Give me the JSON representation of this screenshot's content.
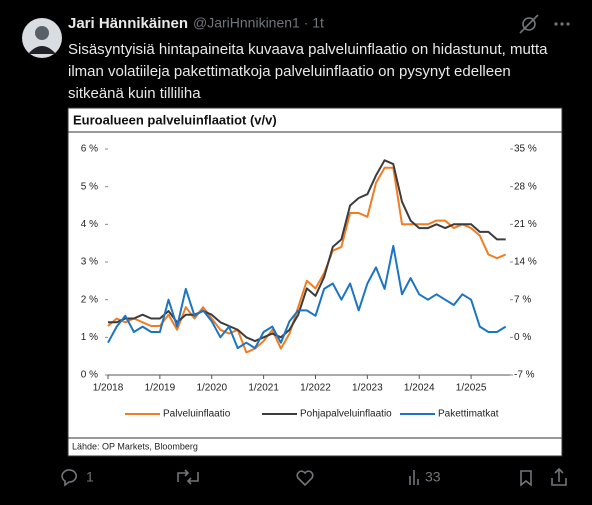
{
  "tweet": {
    "name": "Jari Hännikäinen",
    "handle": "@JariHnnikinen1 · 1t",
    "text_lines": [
      "Sisäsyntyisiä hintapaineita kuvaava palveluinflaatio on hidastunut, mutta",
      "ilman volatiileja pakettimatkoja palveluinflaatio on pysynyt edelleen",
      "sitkeänä kuin tilliliha"
    ],
    "replies": "1",
    "views": "33"
  },
  "chart_data": {
    "type": "line",
    "title": "Euroalueen palveluinflaatiot (v/v)",
    "source": "Lähde: OP Markets, Bloomberg",
    "x": [
      2018,
      2018.167,
      2018.333,
      2018.5,
      2018.667,
      2018.833,
      2019,
      2019.167,
      2019.333,
      2019.5,
      2019.667,
      2019.833,
      2020,
      2020.167,
      2020.333,
      2020.5,
      2020.667,
      2020.833,
      2021,
      2021.167,
      2021.333,
      2021.5,
      2021.667,
      2021.833,
      2022,
      2022.167,
      2022.333,
      2022.5,
      2022.667,
      2022.833,
      2023,
      2023.167,
      2023.333,
      2023.5,
      2023.667,
      2023.833,
      2024,
      2024.167,
      2024.333,
      2024.5,
      2024.667,
      2024.833,
      2025,
      2025.167,
      2025.333,
      2025.5,
      2025.667
    ],
    "xlim": [
      2018,
      2025.75
    ],
    "xticks": [
      {
        "value": 2018,
        "label": "1/2018"
      },
      {
        "value": 2019,
        "label": "1/2019"
      },
      {
        "value": 2020,
        "label": "1/2020"
      },
      {
        "value": 2021,
        "label": "1/2021"
      },
      {
        "value": 2022,
        "label": "1/2022"
      },
      {
        "value": 2023,
        "label": "1/2023"
      },
      {
        "value": 2024,
        "label": "1/2024"
      },
      {
        "value": 2025,
        "label": "1/2025"
      }
    ],
    "ylim": [
      0,
      6
    ],
    "yticks": [
      {
        "value": 0,
        "label": "0 %"
      },
      {
        "value": 1,
        "label": "1 %"
      },
      {
        "value": 2,
        "label": "2 %"
      },
      {
        "value": 3,
        "label": "3 %"
      },
      {
        "value": 4,
        "label": "4 %"
      },
      {
        "value": 5,
        "label": "5 %"
      },
      {
        "value": 6,
        "label": "6 %"
      }
    ],
    "y2lim": [
      -7,
      35
    ],
    "y2ticks": [
      {
        "value": -7,
        "label": "-7 %"
      },
      {
        "value": 0,
        "label": "0 %"
      },
      {
        "value": 7,
        "label": "7 %"
      },
      {
        "value": 14,
        "label": "14 %"
      },
      {
        "value": 21,
        "label": "21 %"
      },
      {
        "value": 28,
        "label": "28 %"
      },
      {
        "value": 35,
        "label": "35 %"
      }
    ],
    "series": [
      {
        "name": "Palveluinflaatio",
        "color": "#f07d22",
        "values": [
          1.3,
          1.5,
          1.4,
          1.5,
          1.4,
          1.3,
          1.3,
          1.6,
          1.2,
          1.8,
          1.5,
          1.8,
          1.5,
          1.2,
          1.1,
          1.2,
          0.6,
          0.7,
          0.9,
          1.2,
          0.7,
          1.1,
          1.8,
          2.5,
          2.3,
          2.7,
          3.3,
          3.4,
          4.3,
          4.3,
          4.2,
          5.1,
          5.5,
          5.5,
          4.0,
          4.0,
          4.0,
          4.0,
          4.1,
          4.1,
          3.9,
          4.0,
          3.9,
          3.7,
          3.2,
          3.1,
          3.2
        ]
      },
      {
        "name": "Pohjapalveluinflaatio",
        "color": "#3c3c3c",
        "values": [
          1.4,
          1.4,
          1.5,
          1.5,
          1.6,
          1.5,
          1.5,
          1.7,
          1.4,
          1.6,
          1.6,
          1.7,
          1.6,
          1.4,
          1.3,
          1.2,
          1.0,
          0.9,
          1.0,
          1.1,
          1.0,
          1.2,
          1.6,
          2.3,
          2.1,
          2.6,
          3.4,
          3.6,
          4.5,
          4.7,
          4.8,
          5.3,
          5.7,
          5.6,
          4.6,
          4.1,
          3.9,
          3.9,
          4.0,
          3.9,
          4.0,
          4.0,
          4.0,
          3.8,
          3.8,
          3.6,
          3.6
        ]
      },
      {
        "name": "Pakettimatkat",
        "color": "#1b75c4",
        "axis": "y2",
        "values": [
          -1,
          2,
          4,
          1,
          2,
          1,
          1,
          7,
          2,
          9,
          4,
          5,
          3,
          0,
          2,
          -2,
          -1,
          -2,
          1,
          2,
          -1,
          3,
          5,
          5,
          4,
          9,
          10,
          7,
          10,
          5,
          10,
          13,
          9,
          17,
          8,
          11,
          8,
          7,
          8,
          7,
          6,
          8,
          7,
          2,
          1,
          1,
          2
        ]
      }
    ]
  }
}
